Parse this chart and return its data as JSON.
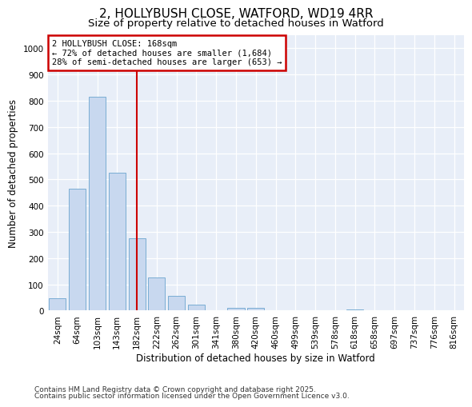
{
  "title1": "2, HOLLYBUSH CLOSE, WATFORD, WD19 4RR",
  "title2": "Size of property relative to detached houses in Watford",
  "xlabel": "Distribution of detached houses by size in Watford",
  "ylabel": "Number of detached properties",
  "categories": [
    "24sqm",
    "64sqm",
    "103sqm",
    "143sqm",
    "182sqm",
    "222sqm",
    "262sqm",
    "301sqm",
    "341sqm",
    "380sqm",
    "420sqm",
    "460sqm",
    "499sqm",
    "539sqm",
    "578sqm",
    "618sqm",
    "658sqm",
    "697sqm",
    "737sqm",
    "776sqm",
    "816sqm"
  ],
  "values": [
    47,
    465,
    815,
    525,
    275,
    125,
    57,
    22,
    0,
    10,
    10,
    0,
    0,
    0,
    0,
    5,
    0,
    0,
    0,
    0,
    0
  ],
  "bar_color": "#c8d8ef",
  "bar_edge_color": "#7aadd4",
  "vline_x": 4.0,
  "vline_color": "#cc0000",
  "annotation_line1": "2 HOLLYBUSH CLOSE: 168sqm",
  "annotation_line2": "← 72% of detached houses are smaller (1,684)",
  "annotation_line3": "28% of semi-detached houses are larger (653) →",
  "annotation_box_color": "#cc0000",
  "ylim": [
    0,
    1050
  ],
  "yticks": [
    0,
    100,
    200,
    300,
    400,
    500,
    600,
    700,
    800,
    900,
    1000
  ],
  "footnote1": "Contains HM Land Registry data © Crown copyright and database right 2025.",
  "footnote2": "Contains public sector information licensed under the Open Government Licence v3.0.",
  "plot_bg_color": "#e8eef8",
  "fig_bg_color": "#ffffff",
  "grid_color": "#ffffff",
  "title1_fontsize": 11,
  "title2_fontsize": 9.5,
  "label_fontsize": 8.5,
  "tick_fontsize": 7.5,
  "annot_fontsize": 7.5,
  "footnote_fontsize": 6.5
}
